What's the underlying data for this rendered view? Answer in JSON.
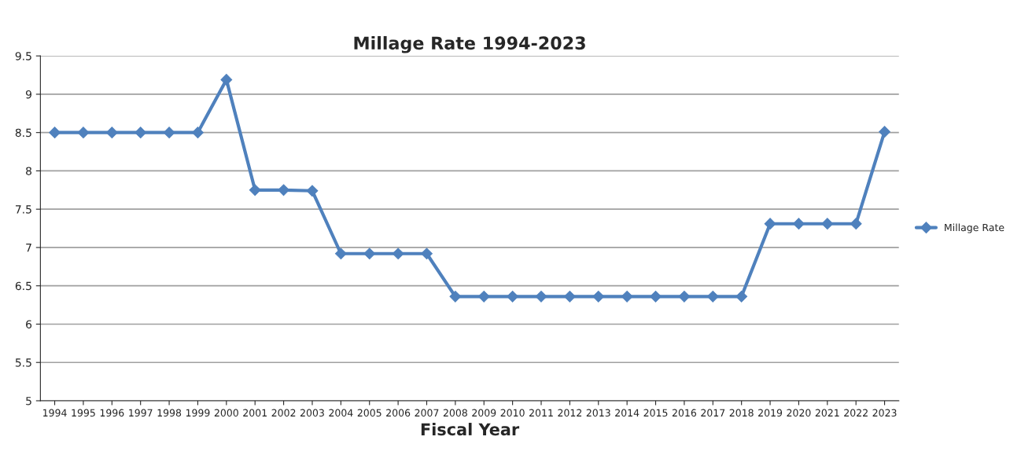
{
  "chart_data": {
    "type": "line",
    "title": "Millage Rate 1994-2023",
    "xlabel": "Fiscal Year",
    "categories": [
      "1994",
      "1995",
      "1996",
      "1997",
      "1998",
      "1999",
      "2000",
      "2001",
      "2002",
      "2003",
      "2004",
      "2005",
      "2006",
      "2007",
      "2008",
      "2009",
      "2010",
      "2011",
      "2012",
      "2013",
      "2014",
      "2015",
      "2016",
      "2017",
      "2018",
      "2019",
      "2020",
      "2021",
      "2022",
      "2023"
    ],
    "series": [
      {
        "name": "Millage Rate",
        "color": "#4f81bd",
        "values": [
          8.5,
          8.5,
          8.5,
          8.5,
          8.5,
          8.5,
          9.19,
          7.75,
          7.75,
          7.74,
          6.92,
          6.92,
          6.92,
          6.92,
          6.36,
          6.36,
          6.36,
          6.36,
          6.36,
          6.36,
          6.36,
          6.36,
          6.36,
          6.36,
          6.36,
          7.31,
          7.31,
          7.31,
          7.31,
          8.51
        ]
      }
    ],
    "ylim": [
      5,
      9.5
    ],
    "yticks": [
      5,
      5.5,
      6,
      6.5,
      7,
      7.5,
      8,
      8.5,
      9,
      9.5
    ],
    "grid": "y",
    "legend": "right",
    "marker": "diamond",
    "line_style": "solid"
  }
}
